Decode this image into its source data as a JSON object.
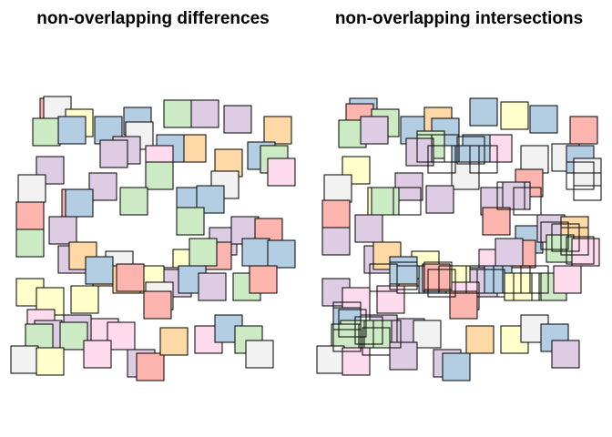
{
  "panels": [
    {
      "title": "non-overlapping differences"
    },
    {
      "title": "non-overlapping intersections"
    }
  ],
  "palette": [
    "#fbb4ae",
    "#b3cde3",
    "#ccebc5",
    "#decbe4",
    "#fed9a6",
    "#ffffcc",
    "#e5d8bd",
    "#fddaec",
    "#f2f2f2"
  ],
  "stroke_color": "#000000"
}
